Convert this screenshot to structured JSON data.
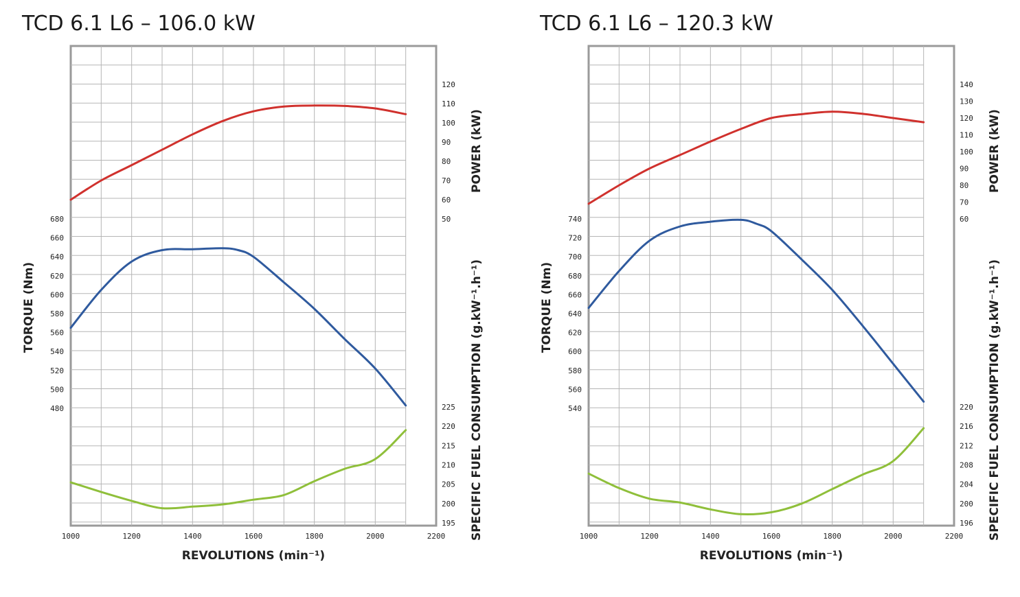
{
  "chart_data": [
    {
      "type": "line",
      "title": "TCD 6.1 L6 – 106.0 kW",
      "xlabel": "REVOLUTIONS (min⁻¹)",
      "xlim": [
        1000,
        2200
      ],
      "x_ticks": [
        "1000",
        "1200",
        "1400",
        "1600",
        "1800",
        "2000",
        "2200"
      ],
      "torque_axis": {
        "label": "TORQUE  (Nm)",
        "ticks": [
          "480",
          "500",
          "520",
          "540",
          "560",
          "580",
          "600",
          "620",
          "640",
          "660",
          "680"
        ],
        "range": [
          480,
          680
        ]
      },
      "power_axis": {
        "label": "POWER (kW)",
        "ticks": [
          "50",
          "60",
          "70",
          "80",
          "90",
          "100",
          "110",
          "120"
        ],
        "range": [
          50,
          120
        ]
      },
      "fuel_axis": {
        "label": "SPECIFIC FUEL CONSUMPTION (g.kW⁻¹.h⁻¹)",
        "ticks": [
          "195",
          "200",
          "205",
          "210",
          "215",
          "220",
          "225"
        ],
        "range": [
          195,
          225
        ]
      },
      "series": [
        {
          "axis": "power",
          "color": "#d0312d",
          "x": [
            1000,
            1100,
            1200,
            1300,
            1400,
            1500,
            1600,
            1700,
            1800,
            1900,
            2000,
            2100
          ],
          "values": [
            60,
            70,
            78,
            86,
            94,
            101,
            106,
            108.5,
            109,
            108.8,
            107.5,
            104.5
          ]
        },
        {
          "axis": "torque",
          "color": "#2f5a9e",
          "x": [
            1000,
            1100,
            1200,
            1300,
            1400,
            1500,
            1550,
            1600,
            1700,
            1800,
            1900,
            2000,
            2100
          ],
          "values": [
            565,
            605,
            635,
            647,
            648,
            649,
            647,
            640,
            613,
            585,
            553,
            522,
            483
          ]
        },
        {
          "axis": "fuel",
          "color": "#8fbf3a",
          "x": [
            1000,
            1100,
            1200,
            1300,
            1400,
            1500,
            1600,
            1700,
            1800,
            1900,
            2000,
            2100
          ],
          "values": [
            205.5,
            203,
            200.7,
            198.8,
            199.2,
            199.8,
            201,
            202.2,
            205.8,
            209,
            211.5,
            219
          ]
        }
      ]
    },
    {
      "type": "line",
      "title": "TCD 6.1 L6 – 120.3 kW",
      "xlabel": "REVOLUTIONS (min⁻¹)",
      "xlim": [
        1000,
        2200
      ],
      "x_ticks": [
        "1000",
        "1200",
        "1400",
        "1600",
        "1800",
        "2000",
        "2200"
      ],
      "torque_axis": {
        "label": "TORQUE  (Nm)",
        "ticks": [
          "540",
          "560",
          "580",
          "600",
          "620",
          "640",
          "660",
          "680",
          "700",
          "720",
          "740"
        ],
        "range": [
          540,
          740
        ]
      },
      "power_axis": {
        "label": "POWER (kW)",
        "ticks": [
          "60",
          "70",
          "80",
          "90",
          "100",
          "110",
          "120",
          "130",
          "140"
        ],
        "range": [
          60,
          140
        ]
      },
      "fuel_axis": {
        "label": "SPECIFIC FUEL CONSUMPTION (g.kW⁻¹.h⁻¹)",
        "ticks": [
          "196",
          "200",
          "204",
          "208",
          "212",
          "216",
          "220"
        ],
        "range": [
          196,
          220
        ]
      },
      "series": [
        {
          "axis": "power",
          "color": "#d0312d",
          "x": [
            1000,
            1100,
            1200,
            1300,
            1400,
            1500,
            1600,
            1700,
            1800,
            1900,
            2000,
            2100
          ],
          "values": [
            69,
            80,
            90,
            98,
            106,
            113.5,
            120,
            122.3,
            123.8,
            122.5,
            120,
            117.5
          ]
        },
        {
          "axis": "torque",
          "color": "#2f5a9e",
          "x": [
            1000,
            1100,
            1200,
            1300,
            1400,
            1500,
            1550,
            1600,
            1700,
            1800,
            1900,
            2000,
            2100
          ],
          "values": [
            646,
            685,
            717,
            732,
            737,
            739,
            735,
            727,
            697,
            665,
            627,
            587,
            547
          ]
        },
        {
          "axis": "fuel",
          "color": "#8fbf3a",
          "x": [
            1000,
            1100,
            1200,
            1300,
            1400,
            1500,
            1600,
            1700,
            1800,
            1900,
            2000,
            2100
          ],
          "values": [
            206.2,
            203.2,
            201,
            200.2,
            198.8,
            197.8,
            198.2,
            200,
            203,
            206,
            208.8,
            215.6
          ]
        }
      ]
    }
  ]
}
